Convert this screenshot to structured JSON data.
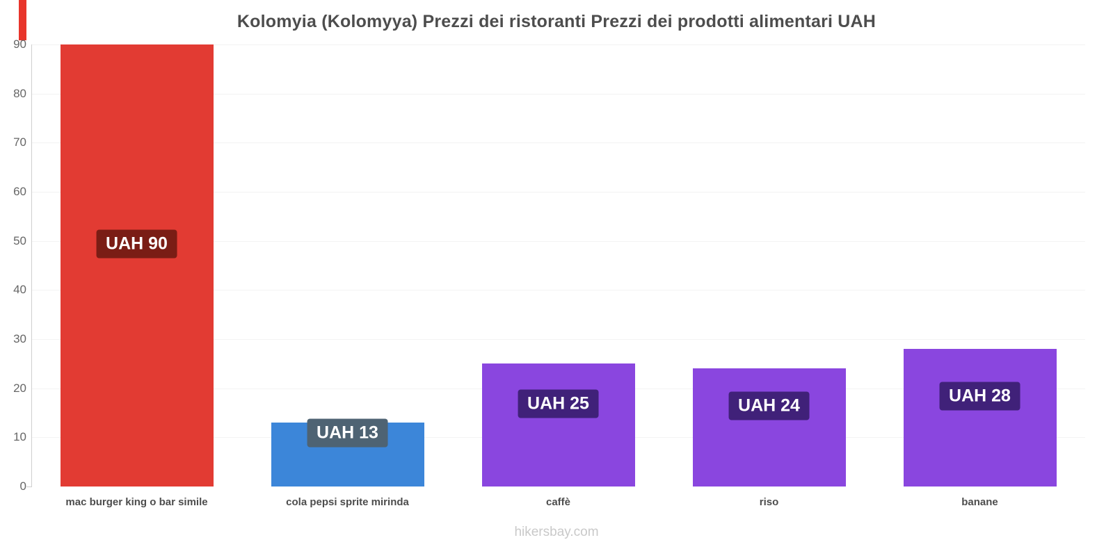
{
  "page": {
    "title": "Kolomyia (Kolomyya) Prezzi dei ristoranti Prezzi dei prodotti alimentari UAH",
    "watermark": "hikersbay.com"
  },
  "colors": {
    "accent": "#e8352b",
    "axis": "#cfcfcf",
    "grid": "#f3f3f3",
    "title_text": "#4d4d4d",
    "tick_text": "#666666",
    "watermark_text": "#c9c9c9"
  },
  "chart_data": {
    "type": "bar",
    "title": "Kolomyia (Kolomyya) Prezzi dei ristoranti Prezzi dei prodotti alimentari UAH",
    "categories": [
      "mac burger king o bar simile",
      "cola pepsi sprite mirinda",
      "caffè",
      "riso",
      "banane"
    ],
    "values": [
      90,
      13,
      25,
      24,
      28
    ],
    "value_labels": [
      "UAH 90",
      "UAH 13",
      "UAH 25",
      "UAH 24",
      "UAH 28"
    ],
    "bar_colors": [
      "#e23b33",
      "#3c86d9",
      "#8a46df",
      "#8a46df",
      "#8a46df"
    ],
    "value_label_bg": [
      "#7a1d15",
      "#4e6373",
      "#402179",
      "#402179",
      "#402179"
    ],
    "currency": "UAH",
    "xlabel": "",
    "ylabel": "",
    "ylim": [
      0,
      90
    ],
    "yticks": [
      0,
      10,
      20,
      30,
      40,
      50,
      60,
      70,
      80,
      90
    ],
    "legend": "none",
    "grid": "horizontal-faint"
  }
}
